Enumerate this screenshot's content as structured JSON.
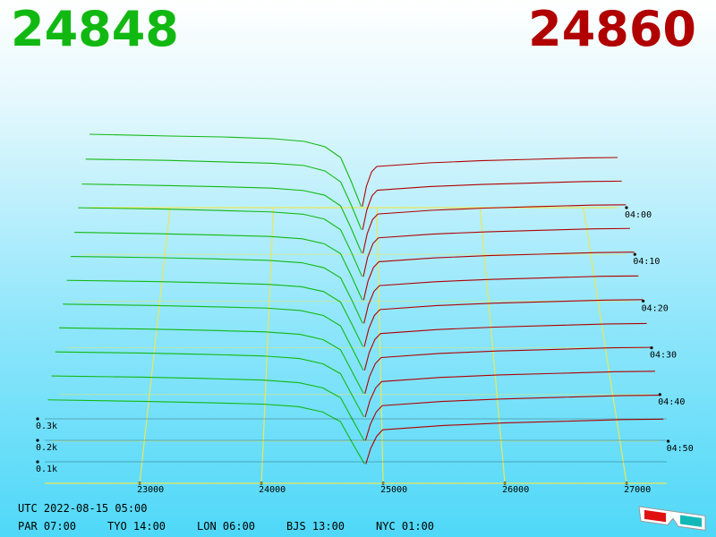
{
  "header": {
    "bid": "24848",
    "ask": "24860"
  },
  "chart_data": {
    "type": "depth3d",
    "xlim": [
      22220,
      27330
    ],
    "xticks": [
      23000,
      24000,
      25000,
      26000,
      27000
    ],
    "tlim": [
      240,
      299
    ],
    "tticks": [
      {
        "value": 240,
        "label": "04:00"
      },
      {
        "value": 250,
        "label": "04:10"
      },
      {
        "value": 260,
        "label": "04:20"
      },
      {
        "value": 270,
        "label": "04:30"
      },
      {
        "value": 280,
        "label": "04:40"
      },
      {
        "value": 290,
        "label": "04:50"
      }
    ],
    "zticks": [
      {
        "value": 100,
        "label": "0.1k"
      },
      {
        "value": 200,
        "label": "0.2k"
      },
      {
        "value": 300,
        "label": "0.3k"
      }
    ],
    "grid_color": "#e8e85a",
    "times": [
      240,
      245,
      250,
      255,
      260,
      265,
      270,
      275,
      280,
      285,
      290,
      295
    ],
    "bids": {
      "color": "#12b812",
      "x": [
        22220,
        23000,
        23500,
        24000,
        24300,
        24500,
        24650,
        24750,
        24848
      ],
      "snapshots": [
        [
          410,
          400,
          395,
          385,
          370,
          340,
          280,
          150,
          8
        ],
        [
          395,
          388,
          380,
          372,
          360,
          330,
          270,
          145,
          8
        ],
        [
          380,
          372,
          366,
          358,
          345,
          320,
          262,
          140,
          7
        ],
        [
          372,
          365,
          358,
          350,
          338,
          312,
          255,
          135,
          7
        ],
        [
          360,
          352,
          346,
          338,
          326,
          300,
          248,
          130,
          6
        ],
        [
          350,
          344,
          338,
          330,
          318,
          292,
          240,
          126,
          6
        ],
        [
          342,
          336,
          330,
          322,
          310,
          285,
          232,
          120,
          6
        ],
        [
          335,
          328,
          322,
          315,
          303,
          278,
          226,
          116,
          5
        ],
        [
          328,
          322,
          316,
          308,
          296,
          270,
          220,
          112,
          5
        ],
        [
          320,
          314,
          308,
          300,
          288,
          262,
          214,
          108,
          5
        ],
        [
          312,
          306,
          300,
          292,
          280,
          255,
          208,
          104,
          4
        ],
        [
          305,
          298,
          292,
          285,
          273,
          248,
          202,
          100,
          4
        ]
      ]
    },
    "asks": {
      "color": "#b00000",
      "x": [
        24860,
        24900,
        24950,
        25000,
        25500,
        26000,
        26500,
        27000,
        27330
      ],
      "snapshots": [
        [
          6,
          120,
          200,
          230,
          250,
          262,
          270,
          278,
          280
        ],
        [
          6,
          116,
          194,
          224,
          244,
          256,
          264,
          272,
          274
        ],
        [
          6,
          112,
          188,
          218,
          238,
          250,
          258,
          266,
          268
        ],
        [
          5,
          108,
          182,
          212,
          232,
          244,
          252,
          260,
          262
        ],
        [
          5,
          104,
          176,
          206,
          226,
          238,
          246,
          254,
          256
        ],
        [
          5,
          100,
          170,
          200,
          220,
          232,
          240,
          248,
          250
        ],
        [
          5,
          96,
          164,
          194,
          214,
          226,
          234,
          242,
          244
        ],
        [
          4,
          92,
          158,
          188,
          208,
          220,
          228,
          236,
          238
        ],
        [
          4,
          88,
          152,
          182,
          202,
          214,
          222,
          230,
          232
        ],
        [
          4,
          84,
          146,
          176,
          196,
          208,
          216,
          224,
          226
        ],
        [
          4,
          80,
          140,
          170,
          190,
          202,
          210,
          218,
          220
        ],
        [
          3,
          76,
          134,
          164,
          184,
          196,
          204,
          212,
          214
        ]
      ]
    }
  },
  "footer": {
    "utc": "UTC 2022-08-15 05:00",
    "zones": [
      "PAR 07:00",
      "TYO 14:00",
      "LON 06:00",
      "BJS 13:00",
      "NYC 01:00"
    ]
  }
}
